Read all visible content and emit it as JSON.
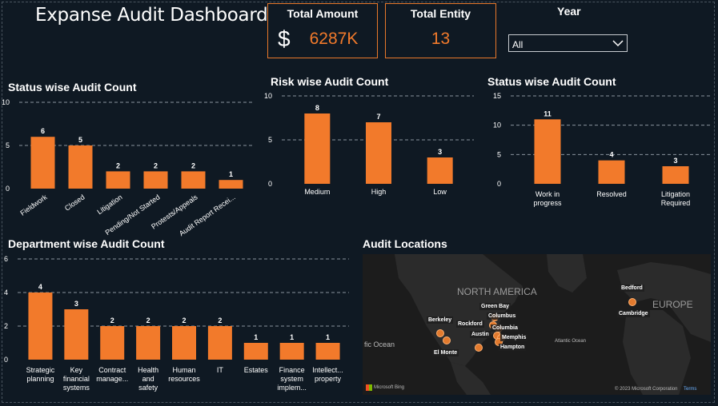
{
  "header": {
    "title": "Expanse Audit Dashboard"
  },
  "cards": {
    "total_amount": {
      "label": "Total Amount",
      "currency": "$",
      "value": "6287K"
    },
    "total_entity": {
      "label": "Total Entity",
      "value": "13"
    }
  },
  "year_filter": {
    "label": "Year",
    "selected": "All"
  },
  "colors": {
    "bar": "#f27a2b",
    "background": "#0f1923",
    "accent_border": "#e8782a"
  },
  "chart_data": [
    {
      "type": "bar",
      "title": "Status wise Audit Count",
      "categories": [
        "Fieldwork",
        "Closed",
        "Litigation",
        "Pending/Not Started",
        "Protests/Appeals",
        "Audit Report Recei..."
      ],
      "values": [
        6,
        5,
        2,
        2,
        2,
        1
      ],
      "yticks": [
        0,
        5,
        10
      ],
      "ylim": [
        0,
        10
      ],
      "grid": true
    },
    {
      "type": "bar",
      "title": "Risk wise Audit Count",
      "categories": [
        "Medium",
        "High",
        "Low"
      ],
      "values": [
        8,
        7,
        3
      ],
      "yticks": [
        0,
        5,
        10
      ],
      "ylim": [
        0,
        10
      ],
      "grid": true
    },
    {
      "type": "bar",
      "title": "Status wise Audit Count",
      "categories": [
        "Work in progress",
        "Resolved",
        "Litigation Required"
      ],
      "values": [
        11,
        4,
        3
      ],
      "yticks": [
        0,
        5,
        10,
        15
      ],
      "ylim": [
        0,
        15
      ],
      "grid": true
    },
    {
      "type": "bar",
      "title": "Department wise Audit Count",
      "categories": [
        "Strategic planning",
        "Key financial systems",
        "Contract manage...",
        "Health and safety",
        "Human resources",
        "IT",
        "Estates",
        "Finance system implem...",
        "Intellect... property"
      ],
      "values": [
        4,
        3,
        2,
        2,
        2,
        2,
        1,
        1,
        1
      ],
      "yticks": [
        0,
        2,
        4,
        6
      ],
      "ylim": [
        0,
        6
      ],
      "grid": true
    }
  ],
  "map": {
    "title": "Audit Locations",
    "regions": {
      "na": "NORTH AMERICA",
      "eu": "EUROPE",
      "pacific": "fic Ocean",
      "atlantic": "Atlantic Ocean"
    },
    "cities": {
      "green_bay": "Green Bay",
      "columbus": "Columbus",
      "rockford": "Rockford",
      "berkeley": "Berkeley",
      "columbia": "Columbia",
      "austin": "Austin",
      "memphis": "Memphis",
      "hampton": "Hampton",
      "el_monte": "El Monte",
      "bedford": "Bedford",
      "cambridge": "Cambridge"
    },
    "attribution": "Microsoft Bing",
    "copyright": "© 2023 Microsoft Corporation",
    "terms": "Terms"
  }
}
